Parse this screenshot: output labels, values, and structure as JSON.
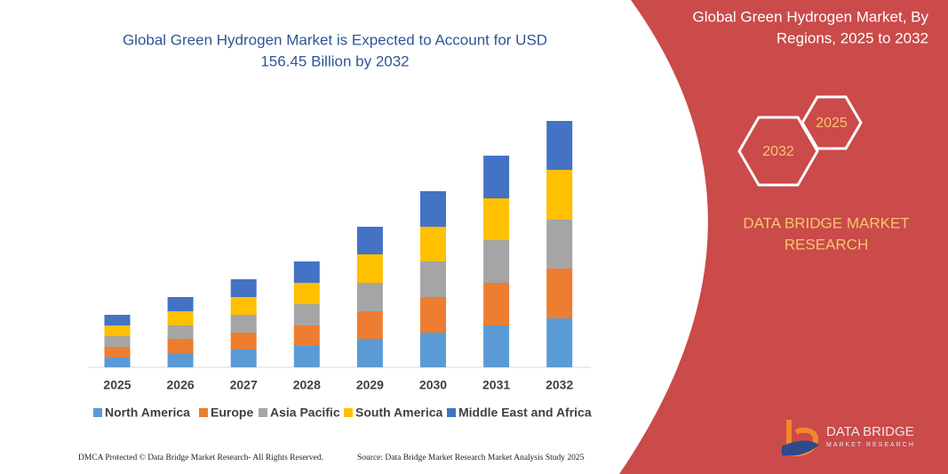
{
  "chart_data": {
    "type": "stacked_bar",
    "title": [
      "Global Green Hydrogen Market is Expected to Account for USD",
      "156.45 Billion by 2032"
    ],
    "categories": [
      "2025",
      "2026",
      "2027",
      "2028",
      "2029",
      "2030",
      "2031",
      "2032"
    ],
    "series": [
      {
        "name": "North America",
        "color": "#5b9bd5",
        "values": [
          11,
          16,
          20,
          24,
          32,
          39,
          47,
          55
        ]
      },
      {
        "name": "Europe",
        "color": "#ed7d31",
        "values": [
          12,
          16,
          19,
          23,
          31,
          40,
          48,
          56
        ]
      },
      {
        "name": "Asia Pacific",
        "color": "#a5a5a5",
        "values": [
          12,
          15,
          20,
          24,
          32,
          40,
          48,
          55
        ]
      },
      {
        "name": "South America",
        "color": "#ffc000",
        "values": [
          12,
          16,
          20,
          24,
          32,
          39,
          47,
          56
        ]
      },
      {
        "name": "Middle East and Africa",
        "color": "#4472c4",
        "values": [
          12,
          16,
          20,
          24,
          31,
          40,
          48,
          55
        ]
      }
    ],
    "legend": "bottom"
  },
  "side_panel": {
    "title": [
      "Global Green Hydrogen Market, By",
      "Regions, 2025 to 2032"
    ],
    "hexagons": [
      "2025",
      "2032"
    ],
    "brand": [
      "DATA BRIDGE MARKET",
      "RESEARCH"
    ],
    "logo": [
      "DATA BRIDGE",
      "MARKET RESEARCH"
    ]
  },
  "footer": {
    "left": "DMCA Protected © Data Bridge Market Research-  All Rights Reserved.",
    "right": "Source: Data Bridge Market Research  Market Analysis Study 2025"
  }
}
